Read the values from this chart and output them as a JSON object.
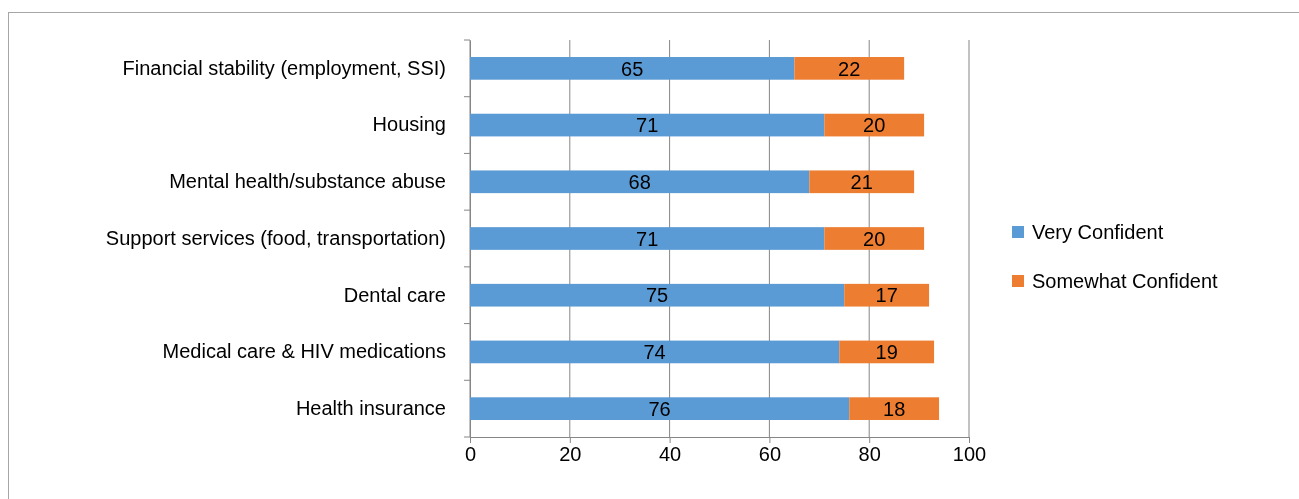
{
  "chart_data": {
    "type": "bar",
    "orientation": "horizontal",
    "stacked": true,
    "categories": [
      "Financial stability (employment, SSI)",
      "Housing",
      "Mental health/substance abuse",
      "Support services (food, transportation)",
      "Dental care",
      "Medical care & HIV medications",
      "Health insurance"
    ],
    "series": [
      {
        "name": "Very Confident",
        "color": "#5b9bd5",
        "values": [
          65,
          71,
          68,
          71,
          75,
          74,
          76
        ]
      },
      {
        "name": "Somewhat Confident",
        "color": "#ed7d31",
        "values": [
          22,
          20,
          21,
          20,
          17,
          19,
          18
        ]
      }
    ],
    "xlim": [
      0,
      100
    ],
    "xticks": [
      0,
      20,
      40,
      60,
      80,
      100
    ],
    "grid": "x",
    "legend": "right",
    "data_labels": true
  }
}
